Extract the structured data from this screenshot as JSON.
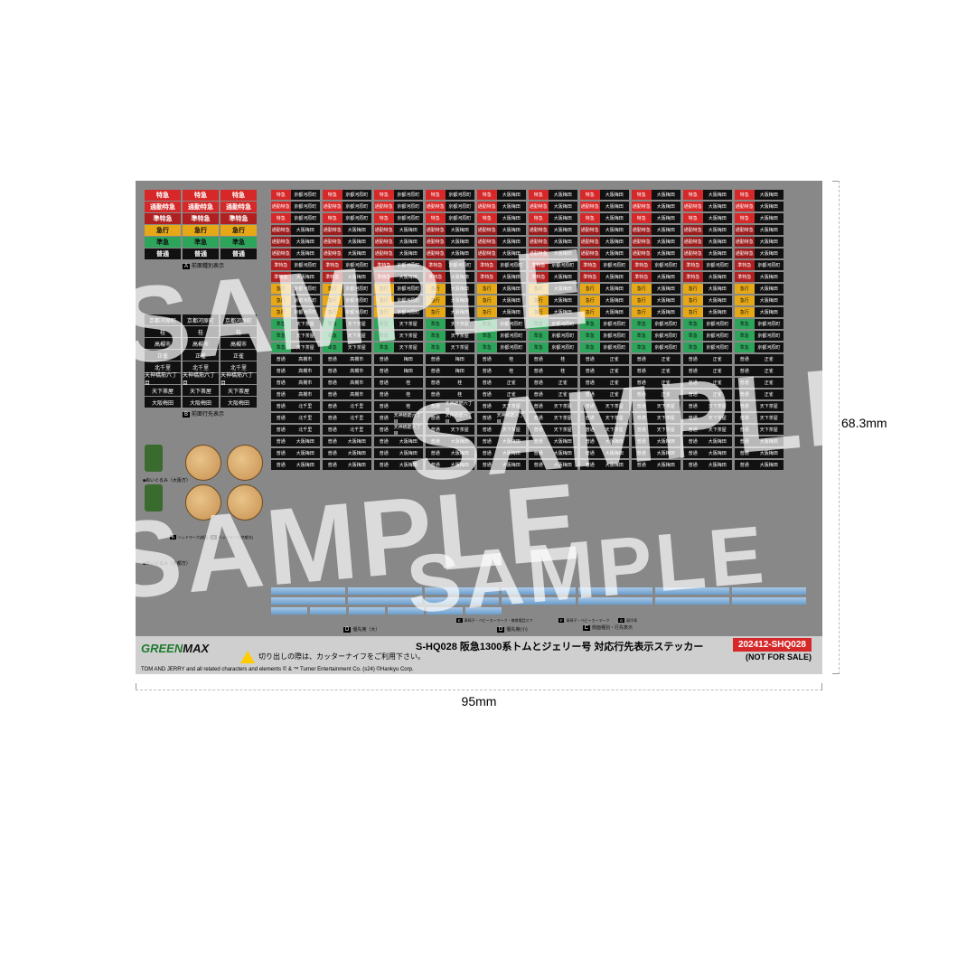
{
  "dim": {
    "width": "95mm",
    "height": "68.3mm"
  },
  "watermark": "SAMPLE",
  "section_a_label": "前面種別表示",
  "section_b_label": "前面行先表示",
  "section_c_label": "側面種別・行先表示",
  "section_d_label": "優先席（大）",
  "section_d2_label": "優先席(小)",
  "section_e_label": "車椅子・ベビーカーマーク・携帯電話オフ",
  "section_f_label": "車椅子・ベビーカーマーク",
  "section_g_label": "弱冷車",
  "char_label1": "■ぬいぐるみ（大阪方）",
  "char_label2": "ヘッドマーク(前面)",
  "char_label2b": "ヘッドマーク(京都方)",
  "char_label3": "■ぬいぐるみ（京都方）",
  "colors": {
    "red": "#d62828",
    "crimson": "#b02020",
    "yellow": "#e6a817",
    "green": "#2ca55a",
    "black": "#111111",
    "white": "#ffffff",
    "sheet": "#888888"
  },
  "typesA": [
    {
      "text": "特急",
      "bg": "#d62828",
      "fg": "#ffffff"
    },
    {
      "text": "通勤特急",
      "bg": "#d62828",
      "fg": "#ffffff"
    },
    {
      "text": "準特急",
      "bg": "#b02020",
      "fg": "#ffffff"
    },
    {
      "text": "急行",
      "bg": "#e6a817",
      "fg": "#111111"
    },
    {
      "text": "準急",
      "bg": "#2ca55a",
      "fg": "#111111"
    },
    {
      "text": "普通",
      "bg": "#111111",
      "fg": "#ffffff"
    }
  ],
  "destsB": [
    "京都河原町",
    "桂",
    "高槻市",
    "正雀",
    "北千里",
    "天神橋筋六丁目",
    "天下茶屋",
    "大阪梅田"
  ],
  "sideDests": [
    "京都河原町",
    "大阪梅田",
    "高槻市",
    "正雀",
    "天下茶屋",
    "桂",
    "北千里",
    "天神橋筋六丁目"
  ],
  "mainRows": [
    {
      "type": "特急",
      "tbg": "#d62828",
      "tfg": "#ffffff",
      "dests": [
        "京都河原町",
        "京都河原町",
        "京都河原町",
        "京都河原町",
        "大阪梅田",
        "大阪梅田",
        "大阪梅田",
        "大阪梅田"
      ]
    },
    {
      "type": "通勤特急",
      "tbg": "#d62828",
      "tfg": "#ffffff",
      "dests": [
        "京都河原町",
        "京都河原町",
        "京都河原町",
        "京都河原町",
        "大阪梅田",
        "大阪梅田",
        "大阪梅田",
        "大阪梅田"
      ]
    },
    {
      "type": "特急",
      "tbg": "#d62828",
      "tfg": "#ffffff",
      "dests": [
        "京都河原町",
        "京都河原町",
        "京都河原町",
        "京都河原町",
        "大阪梅田",
        "大阪梅田",
        "大阪梅田",
        "大阪梅田"
      ]
    },
    {
      "type": "通勤特急",
      "tbg": "#9b1c1c",
      "tfg": "#ffffff",
      "dests": [
        "大阪梅田",
        "大阪梅田",
        "大阪梅田",
        "大阪梅田",
        "大阪梅田",
        "大阪梅田",
        "大阪梅田",
        "大阪梅田"
      ]
    },
    {
      "type": "通勤特急",
      "tbg": "#9b1c1c",
      "tfg": "#ffffff",
      "dests": [
        "大阪梅田",
        "大阪梅田",
        "大阪梅田",
        "大阪梅田",
        "大阪梅田",
        "大阪梅田",
        "大阪梅田",
        "大阪梅田"
      ]
    },
    {
      "type": "通勤特急",
      "tbg": "#9b1c1c",
      "tfg": "#ffffff",
      "dests": [
        "大阪梅田",
        "大阪梅田",
        "大阪梅田",
        "大阪梅田",
        "大阪梅田",
        "大阪梅田",
        "大阪梅田",
        "大阪梅田"
      ]
    },
    {
      "type": "準特急",
      "tbg": "#b02020",
      "tfg": "#ffffff",
      "dests": [
        "京都河原町",
        "京都河原町",
        "京都河原町",
        "京都河原町",
        "京都河原町",
        "京都河原町",
        "京都河原町",
        "京都河原町"
      ]
    },
    {
      "type": "準特急",
      "tbg": "#b02020",
      "tfg": "#ffffff",
      "dests": [
        "大阪梅田",
        "大阪梅田",
        "大阪梅田",
        "大阪梅田",
        "大阪梅田",
        "大阪梅田",
        "大阪梅田",
        "大阪梅田"
      ]
    },
    {
      "type": "急行",
      "tbg": "#e6a817",
      "tfg": "#111111",
      "dests": [
        "京都河原町",
        "京都河原町",
        "京都河原町",
        "大阪梅田",
        "大阪梅田",
        "大阪梅田",
        "大阪梅田",
        "大阪梅田"
      ]
    },
    {
      "type": "急行",
      "tbg": "#e6a817",
      "tfg": "#111111",
      "dests": [
        "京都河原町",
        "京都河原町",
        "京都河原町",
        "大阪梅田",
        "大阪梅田",
        "大阪梅田",
        "大阪梅田",
        "大阪梅田"
      ]
    },
    {
      "type": "急行",
      "tbg": "#e6a817",
      "tfg": "#111111",
      "dests": [
        "京都河原町",
        "京都河原町",
        "京都河原町",
        "大阪梅田",
        "大阪梅田",
        "大阪梅田",
        "大阪梅田",
        "大阪梅田"
      ]
    },
    {
      "type": "準急",
      "tbg": "#2ca55a",
      "tfg": "#111111",
      "dests": [
        "天下茶屋",
        "天下茶屋",
        "天下茶屋",
        "天下茶屋",
        "京都河原町",
        "京都河原町",
        "京都河原町",
        "京都河原町"
      ]
    },
    {
      "type": "準急",
      "tbg": "#2ca55a",
      "tfg": "#111111",
      "dests": [
        "天下茶屋",
        "天下茶屋",
        "天下茶屋",
        "天下茶屋",
        "京都河原町",
        "京都河原町",
        "京都河原町",
        "京都河原町"
      ]
    },
    {
      "type": "準急",
      "tbg": "#2ca55a",
      "tfg": "#111111",
      "dests": [
        "天下茶屋",
        "天下茶屋",
        "天下茶屋",
        "天下茶屋",
        "京都河原町",
        "京都河原町",
        "京都河原町",
        "京都河原町"
      ]
    },
    {
      "type": "普通",
      "tbg": "#111111",
      "tfg": "#ffffff",
      "dests": [
        "高槻市",
        "高槻市",
        "梅田",
        "梅田",
        "桂",
        "桂",
        "正雀",
        "正雀"
      ]
    },
    {
      "type": "普通",
      "tbg": "#111111",
      "tfg": "#ffffff",
      "dests": [
        "高槻市",
        "高槻市",
        "梅田",
        "梅田",
        "桂",
        "桂",
        "正雀",
        "正雀"
      ]
    },
    {
      "type": "普通",
      "tbg": "#111111",
      "tfg": "#ffffff",
      "dests": [
        "高槻市",
        "高槻市",
        "桂",
        "桂",
        "正雀",
        "正雀",
        "正雀",
        "正雀"
      ]
    },
    {
      "type": "普通",
      "tbg": "#111111",
      "tfg": "#ffffff",
      "dests": [
        "高槻市",
        "高槻市",
        "桂",
        "桂",
        "正雀",
        "正雀",
        "正雀",
        "正雀"
      ]
    },
    {
      "type": "普通",
      "tbg": "#111111",
      "tfg": "#ffffff",
      "dests": [
        "北千里",
        "北千里",
        "桂",
        "天神橋筋六丁目",
        "天下茶屋",
        "天下茶屋",
        "天下茶屋",
        "天下茶屋"
      ]
    },
    {
      "type": "普通",
      "tbg": "#111111",
      "tfg": "#ffffff",
      "dests": [
        "北千里",
        "北千里",
        "天神橋筋六丁目",
        "天神橋筋六丁目",
        "天神橋筋六丁目",
        "天下茶屋",
        "天下茶屋",
        "天下茶屋"
      ]
    },
    {
      "type": "普通",
      "tbg": "#111111",
      "tfg": "#ffffff",
      "dests": [
        "北千里",
        "北千里",
        "天神橋筋六丁目",
        "天下茶屋",
        "天下茶屋",
        "天下茶屋",
        "天下茶屋",
        "天下茶屋"
      ]
    },
    {
      "type": "普通",
      "tbg": "#111111",
      "tfg": "#ffffff",
      "dests": [
        "大阪梅田",
        "大阪梅田",
        "大阪梅田",
        "大阪梅田",
        "大阪梅田",
        "大阪梅田",
        "大阪梅田",
        "大阪梅田"
      ]
    },
    {
      "type": "普通",
      "tbg": "#111111",
      "tfg": "#ffffff",
      "dests": [
        "大阪梅田",
        "大阪梅田",
        "大阪梅田",
        "大阪梅田",
        "大阪梅田",
        "大阪梅田",
        "大阪梅田",
        "大阪梅田"
      ]
    },
    {
      "type": "普通",
      "tbg": "#111111",
      "tfg": "#ffffff",
      "dests": [
        "大阪梅田",
        "大阪梅田",
        "大阪梅田",
        "大阪梅田",
        "大阪梅田",
        "大阪梅田",
        "大阪梅田",
        "大阪梅田"
      ]
    }
  ],
  "footer": {
    "logo_green": "GREEN",
    "logo_max": "MAX",
    "warn": "切り出しの際は、カッターナイフをご利用下さい。",
    "title": "S-HQ028  阪急1300系トムとジェリー号  対応行先表示ステッカー",
    "code": "202412-SHQ028",
    "nfs": "(NOT FOR SALE)",
    "copyright": "TOM AND JERRY and all related characters and elements © & ™ Turner Entertainment Co. (s24)  ©Hankyu Corp."
  },
  "priority_count": 14,
  "priority_small_count": 6
}
